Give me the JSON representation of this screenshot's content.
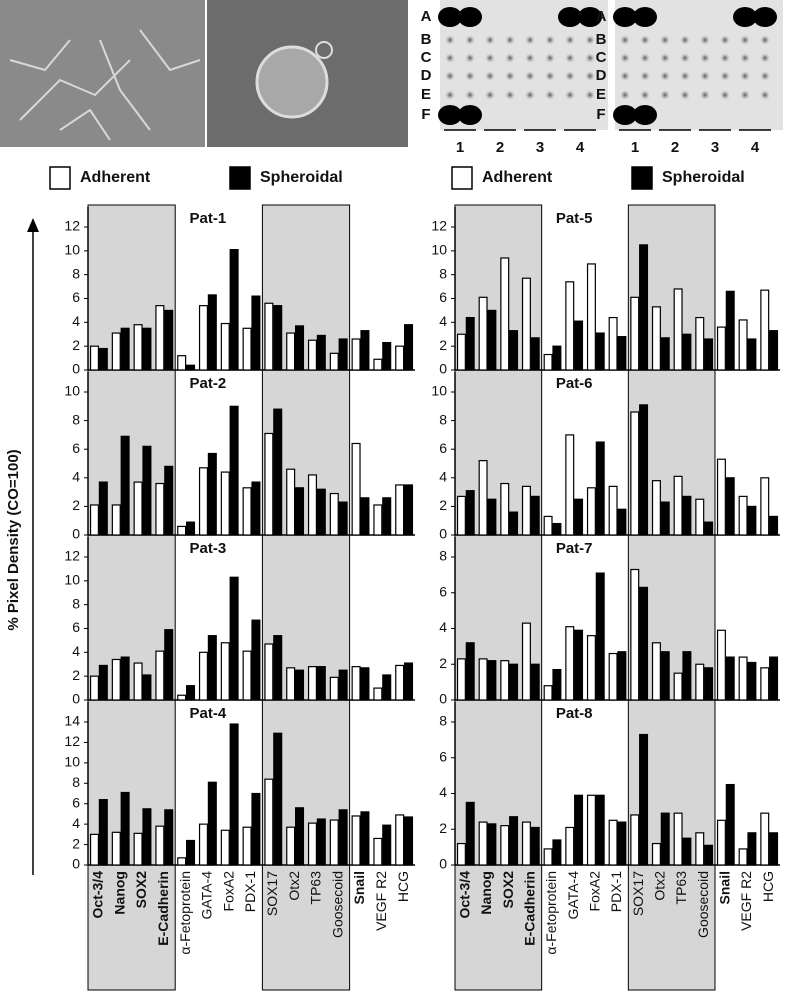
{
  "figure": {
    "ylabel": "% Pixel Density (CO=100)"
  },
  "blots": [
    {
      "row_labels": [
        "A",
        "B",
        "C",
        "D",
        "E",
        "F"
      ],
      "col_labels": [
        "1",
        "2",
        "3",
        "4"
      ]
    },
    {
      "row_labels": [
        "A",
        "B",
        "C",
        "D",
        "E",
        "F"
      ],
      "col_labels": [
        "1",
        "2",
        "3",
        "4"
      ]
    }
  ],
  "chart_data": [
    {
      "type": "bar",
      "title": "Pat-1",
      "ylim": [
        0,
        12
      ],
      "yticks": [
        0,
        2,
        4,
        6,
        8,
        10,
        12
      ],
      "categories": [
        "Oct-3/4",
        "Nanog",
        "SOX2",
        "E-Cadherin",
        "α-Fetoprotein",
        "GATA-4",
        "FoxA2",
        "PDX-1",
        "SOX17",
        "Otx2",
        "TP63",
        "Goosecoid",
        "Snail",
        "VEGF R2",
        "HCG"
      ],
      "series": [
        {
          "name": "Adherent",
          "color": "#ffffff",
          "values": [
            2.0,
            3.1,
            3.8,
            5.4,
            1.2,
            5.4,
            3.9,
            3.5,
            5.6,
            3.1,
            2.5,
            1.4,
            2.6,
            0.9,
            2.0
          ]
        },
        {
          "name": "Spheroidal",
          "color": "#000000",
          "values": [
            1.8,
            3.5,
            3.5,
            5.0,
            0.4,
            6.3,
            10.1,
            6.2,
            5.4,
            3.7,
            2.9,
            2.6,
            3.3,
            2.3,
            3.8
          ]
        }
      ]
    },
    {
      "type": "bar",
      "title": "Pat-2",
      "ylim": [
        0,
        10
      ],
      "yticks": [
        0,
        2,
        4,
        6,
        8,
        10
      ],
      "categories": [
        "Oct-3/4",
        "Nanog",
        "SOX2",
        "E-Cadherin",
        "α-Fetoprotein",
        "GATA-4",
        "FoxA2",
        "PDX-1",
        "SOX17",
        "Otx2",
        "TP63",
        "Goosecoid",
        "Snail",
        "VEGF R2",
        "HCG"
      ],
      "series": [
        {
          "name": "Adherent",
          "color": "#ffffff",
          "values": [
            2.1,
            2.1,
            3.7,
            3.6,
            0.6,
            4.7,
            4.4,
            3.3,
            7.1,
            4.6,
            4.2,
            2.9,
            6.4,
            2.1,
            3.5
          ]
        },
        {
          "name": "Spheroidal",
          "color": "#000000",
          "values": [
            3.7,
            6.9,
            6.2,
            4.8,
            0.9,
            5.7,
            9.0,
            3.7,
            8.8,
            3.3,
            3.2,
            2.3,
            2.6,
            2.6,
            3.5
          ]
        }
      ]
    },
    {
      "type": "bar",
      "title": "Pat-3",
      "ylim": [
        0,
        12
      ],
      "yticks": [
        0,
        2,
        4,
        6,
        8,
        10,
        12
      ],
      "categories": [
        "Oct-3/4",
        "Nanog",
        "SOX2",
        "E-Cadherin",
        "α-Fetoprotein",
        "GATA-4",
        "FoxA2",
        "PDX-1",
        "SOX17",
        "Otx2",
        "TP63",
        "Goosecoid",
        "Snail",
        "VEGF R2",
        "HCG"
      ],
      "series": [
        {
          "name": "Adherent",
          "color": "#ffffff",
          "values": [
            2.0,
            3.4,
            3.1,
            4.1,
            0.4,
            4.0,
            4.8,
            4.1,
            4.7,
            2.7,
            2.8,
            1.9,
            2.8,
            1.0,
            2.9
          ]
        },
        {
          "name": "Spheroidal",
          "color": "#000000",
          "values": [
            2.9,
            3.6,
            2.1,
            5.9,
            1.2,
            5.4,
            10.3,
            6.7,
            5.4,
            2.5,
            2.8,
            2.5,
            2.7,
            2.1,
            3.1
          ]
        }
      ]
    },
    {
      "type": "bar",
      "title": "Pat-4",
      "ylim": [
        0,
        14
      ],
      "yticks": [
        0,
        2,
        4,
        6,
        8,
        10,
        12,
        14
      ],
      "categories": [
        "Oct-3/4",
        "Nanog",
        "SOX2",
        "E-Cadherin",
        "α-Fetoprotein",
        "GATA-4",
        "FoxA2",
        "PDX-1",
        "SOX17",
        "Otx2",
        "TP63",
        "Goosecoid",
        "Snail",
        "VEGF R2",
        "HCG"
      ],
      "series": [
        {
          "name": "Adherent",
          "color": "#ffffff",
          "values": [
            3.0,
            3.2,
            3.1,
            3.8,
            0.7,
            4.0,
            3.4,
            3.7,
            8.4,
            3.7,
            4.1,
            4.4,
            4.8,
            2.6,
            4.9
          ]
        },
        {
          "name": "Spheroidal",
          "color": "#000000",
          "values": [
            6.4,
            7.1,
            5.5,
            5.4,
            2.4,
            8.1,
            13.8,
            7.0,
            12.9,
            5.6,
            4.5,
            5.4,
            5.2,
            3.9,
            4.7
          ]
        }
      ]
    },
    {
      "type": "bar",
      "title": "Pat-5",
      "ylim": [
        0,
        12
      ],
      "yticks": [
        0,
        2,
        4,
        6,
        8,
        10,
        12
      ],
      "categories": [
        "Oct-3/4",
        "Nanog",
        "SOX2",
        "E-Cadherin",
        "α-Fetoprotein",
        "GATA-4",
        "FoxA2",
        "PDX-1",
        "SOX17",
        "Otx2",
        "TP63",
        "Goosecoid",
        "Snail",
        "VEGF R2",
        "HCG"
      ],
      "series": [
        {
          "name": "Adherent",
          "color": "#ffffff",
          "values": [
            3.0,
            6.1,
            9.4,
            7.7,
            1.3,
            7.4,
            8.9,
            4.4,
            6.1,
            5.3,
            6.8,
            4.4,
            3.6,
            4.2,
            6.7
          ]
        },
        {
          "name": "Spheroidal",
          "color": "#000000",
          "values": [
            4.4,
            5.0,
            3.3,
            2.7,
            2.0,
            4.1,
            3.1,
            2.8,
            10.5,
            2.7,
            3.0,
            2.6,
            6.6,
            2.6,
            3.3
          ]
        }
      ]
    },
    {
      "type": "bar",
      "title": "Pat-6",
      "ylim": [
        0,
        10
      ],
      "yticks": [
        0,
        2,
        4,
        6,
        8,
        10
      ],
      "categories": [
        "Oct-3/4",
        "Nanog",
        "SOX2",
        "E-Cadherin",
        "α-Fetoprotein",
        "GATA-4",
        "FoxA2",
        "PDX-1",
        "SOX17",
        "Otx2",
        "TP63",
        "Goosecoid",
        "Snail",
        "VEGF R2",
        "HCG"
      ],
      "series": [
        {
          "name": "Adherent",
          "color": "#ffffff",
          "values": [
            2.7,
            5.2,
            3.6,
            3.4,
            1.3,
            7.0,
            3.3,
            3.4,
            8.6,
            3.8,
            4.1,
            2.5,
            5.3,
            2.7,
            4.0
          ]
        },
        {
          "name": "Spheroidal",
          "color": "#000000",
          "values": [
            3.1,
            2.5,
            1.6,
            2.7,
            0.8,
            2.5,
            6.5,
            1.8,
            9.1,
            2.3,
            2.7,
            0.9,
            4.0,
            2.0,
            1.3
          ]
        }
      ]
    },
    {
      "type": "bar",
      "title": "Pat-7",
      "ylim": [
        0,
        8
      ],
      "yticks": [
        0,
        2,
        4,
        6,
        8
      ],
      "categories": [
        "Oct-3/4",
        "Nanog",
        "SOX2",
        "E-Cadherin",
        "α-Fetoprotein",
        "GATA-4",
        "FoxA2",
        "PDX-1",
        "SOX17",
        "Otx2",
        "TP63",
        "Goosecoid",
        "Snail",
        "VEGF R2",
        "HCG"
      ],
      "series": [
        {
          "name": "Adherent",
          "color": "#ffffff",
          "values": [
            2.3,
            2.3,
            2.2,
            4.3,
            0.8,
            4.1,
            3.6,
            2.6,
            7.3,
            3.2,
            1.5,
            2.0,
            3.9,
            2.4,
            1.8
          ]
        },
        {
          "name": "Spheroidal",
          "color": "#000000",
          "values": [
            3.2,
            2.2,
            2.0,
            2.0,
            1.7,
            3.9,
            7.1,
            2.7,
            6.3,
            2.7,
            2.7,
            1.8,
            2.4,
            2.1,
            2.4
          ]
        }
      ]
    },
    {
      "type": "bar",
      "title": "Pat-8",
      "ylim": [
        0,
        8
      ],
      "yticks": [
        0,
        2,
        4,
        6,
        8
      ],
      "categories": [
        "Oct-3/4",
        "Nanog",
        "SOX2",
        "E-Cadherin",
        "α-Fetoprotein",
        "GATA-4",
        "FoxA2",
        "PDX-1",
        "SOX17",
        "Otx2",
        "TP63",
        "Goosecoid",
        "Snail",
        "VEGF R2",
        "HCG"
      ],
      "series": [
        {
          "name": "Adherent",
          "color": "#ffffff",
          "values": [
            1.2,
            2.4,
            2.2,
            2.4,
            0.9,
            2.1,
            3.9,
            2.5,
            2.8,
            1.2,
            2.9,
            1.8,
            2.5,
            0.9,
            2.9
          ]
        },
        {
          "name": "Spheroidal",
          "color": "#000000",
          "values": [
            3.5,
            2.3,
            2.7,
            2.1,
            1.4,
            3.9,
            3.9,
            2.4,
            7.3,
            2.9,
            1.5,
            1.1,
            4.5,
            1.8,
            1.8
          ]
        }
      ]
    }
  ]
}
